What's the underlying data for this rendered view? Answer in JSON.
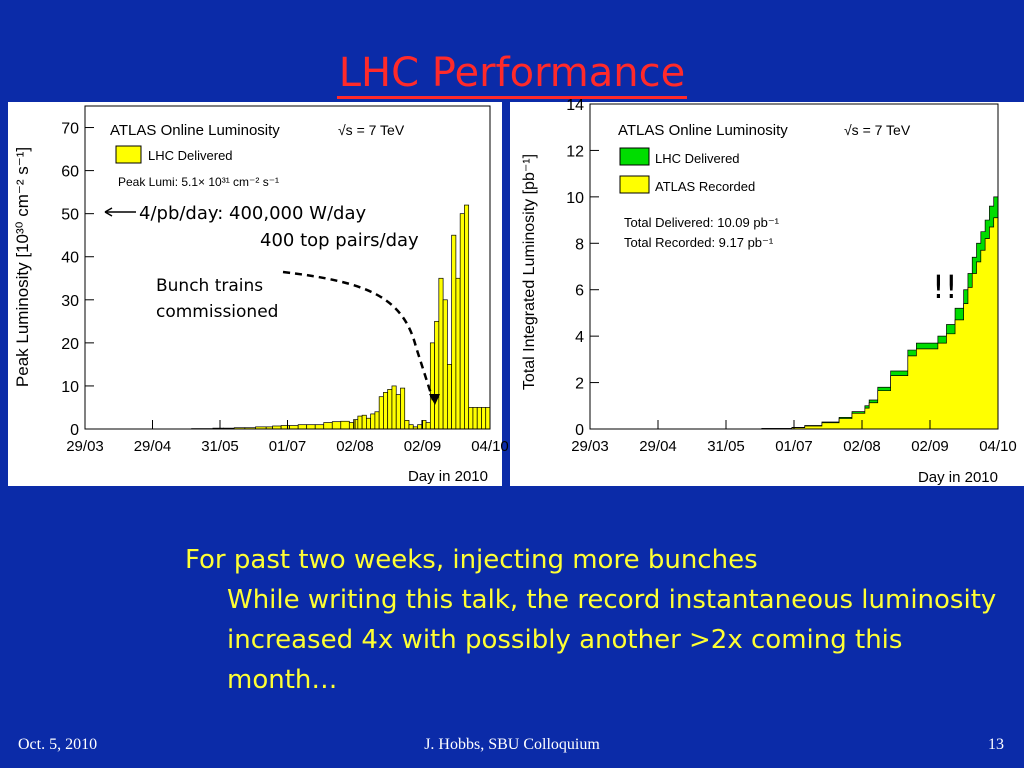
{
  "slide": {
    "title": "LHC Performance",
    "bullet_main": "For past two weeks, injecting more bunches",
    "bullet_sub": "While writing this talk, the record instantaneous luminosity increased 4x with possibly another >2x coming this month…",
    "footer_left": "Oct. 5, 2010",
    "footer_center": "J. Hobbs, SBU Colloquium",
    "footer_right": "13",
    "colors": {
      "background": "#0b2ba8",
      "title": "#ff2a2a",
      "bullet_text": "#ffff33",
      "annot_arrow": "#000000"
    }
  },
  "chart_data": [
    {
      "type": "bar",
      "title": "ATLAS Online Luminosity",
      "energy": "√s = 7 TeV",
      "xlabel": "Day in 2010",
      "ylabel": "Peak Luminosity [10³⁰ cm⁻² s⁻¹]",
      "ylim": [
        0,
        75
      ],
      "yticks": [
        "0",
        "10",
        "20",
        "30",
        "40",
        "50",
        "60",
        "70"
      ],
      "xticks": [
        "29/03",
        "29/04",
        "31/05",
        "01/07",
        "02/08",
        "02/09",
        "04/10"
      ],
      "xlim": [
        0,
        190
      ],
      "legend": {
        "position": "top-left",
        "entry": "LHC Delivered",
        "color": "#ffff00"
      },
      "peak_text": "Peak Lumi: 5.1× 10³¹ cm⁻² s⁻¹",
      "annotations": {
        "arrow_text": "4/pb/day:  400,000 W/day",
        "arrow_text2": "400 top pairs/day",
        "bunch_text1": "Bunch trains",
        "bunch_text2": "commissioned"
      },
      "series": [
        {
          "x": [
            0,
            10,
            20,
            30,
            40,
            50,
            60,
            65,
            70,
            75,
            80,
            85,
            88,
            92,
            96,
            100,
            104,
            108,
            112,
            116,
            120,
            124,
            126,
            128,
            130,
            132,
            134,
            136,
            138,
            140,
            142,
            144,
            146,
            148,
            150,
            152,
            154,
            156,
            158,
            160,
            162,
            164,
            166,
            168,
            170,
            172,
            174,
            176,
            178,
            180,
            182,
            184,
            186,
            188,
            190
          ],
          "values": [
            0,
            0,
            0.01,
            0.02,
            0.05,
            0.1,
            0.2,
            0.2,
            0.3,
            0.3,
            0.5,
            0.5,
            0.7,
            0.8,
            0.8,
            1.0,
            1.0,
            1.0,
            1.5,
            1.7,
            1.8,
            1.5,
            2.2,
            3.0,
            3.2,
            2.5,
            3.5,
            4.0,
            7.5,
            8.5,
            9.2,
            10.0,
            8.0,
            9.5,
            2.0,
            1.0,
            0.5,
            1.0,
            2.0,
            1.5,
            20,
            25,
            35,
            30,
            15,
            45,
            35,
            50,
            52,
            5,
            5,
            5,
            5,
            5,
            5
          ]
        }
      ]
    },
    {
      "type": "area",
      "title": "ATLAS Online Luminosity",
      "energy": "√s = 7 TeV",
      "xlabel": "Day in 2010",
      "ylabel": "Total Integrated Luminosity [pb⁻¹]",
      "ylim": [
        0,
        14
      ],
      "yticks": [
        "0",
        "2",
        "4",
        "6",
        "8",
        "10",
        "12",
        "14"
      ],
      "xticks": [
        "29/03",
        "29/04",
        "31/05",
        "01/07",
        "02/08",
        "02/09",
        "04/10"
      ],
      "xlim": [
        0,
        190
      ],
      "legend": {
        "position": "top-left",
        "entries": [
          {
            "name": "LHC Delivered",
            "color": "#00dd00"
          },
          {
            "name": "ATLAS Recorded",
            "color": "#ffff00"
          }
        ]
      },
      "total_delivered": "Total Delivered: 10.09 pb⁻¹",
      "total_recorded": "Total Recorded: 9.17 pb⁻¹",
      "annotation": "!!",
      "series": [
        {
          "name": "LHC Delivered",
          "x": [
            0,
            80,
            94,
            100,
            108,
            116,
            122,
            128,
            130,
            134,
            140,
            148,
            152,
            160,
            162,
            166,
            170,
            174,
            176,
            178,
            180,
            182,
            184,
            186,
            188,
            190
          ],
          "values": [
            0,
            0.02,
            0.07,
            0.15,
            0.3,
            0.5,
            0.75,
            1.0,
            1.25,
            1.8,
            2.5,
            3.4,
            3.7,
            3.7,
            4.0,
            4.5,
            5.2,
            6.0,
            6.7,
            7.4,
            8.0,
            8.5,
            9.0,
            9.6,
            10.0,
            10.09
          ]
        },
        {
          "name": "ATLAS Recorded",
          "x": [
            0,
            80,
            94,
            100,
            108,
            116,
            122,
            128,
            130,
            134,
            140,
            148,
            152,
            160,
            162,
            166,
            170,
            174,
            176,
            178,
            180,
            182,
            184,
            186,
            188,
            190
          ],
          "values": [
            0,
            0.02,
            0.06,
            0.13,
            0.27,
            0.45,
            0.68,
            0.9,
            1.13,
            1.65,
            2.3,
            3.15,
            3.45,
            3.45,
            3.7,
            4.1,
            4.7,
            5.4,
            6.1,
            6.7,
            7.2,
            7.7,
            8.2,
            8.7,
            9.1,
            9.17
          ]
        }
      ]
    }
  ]
}
